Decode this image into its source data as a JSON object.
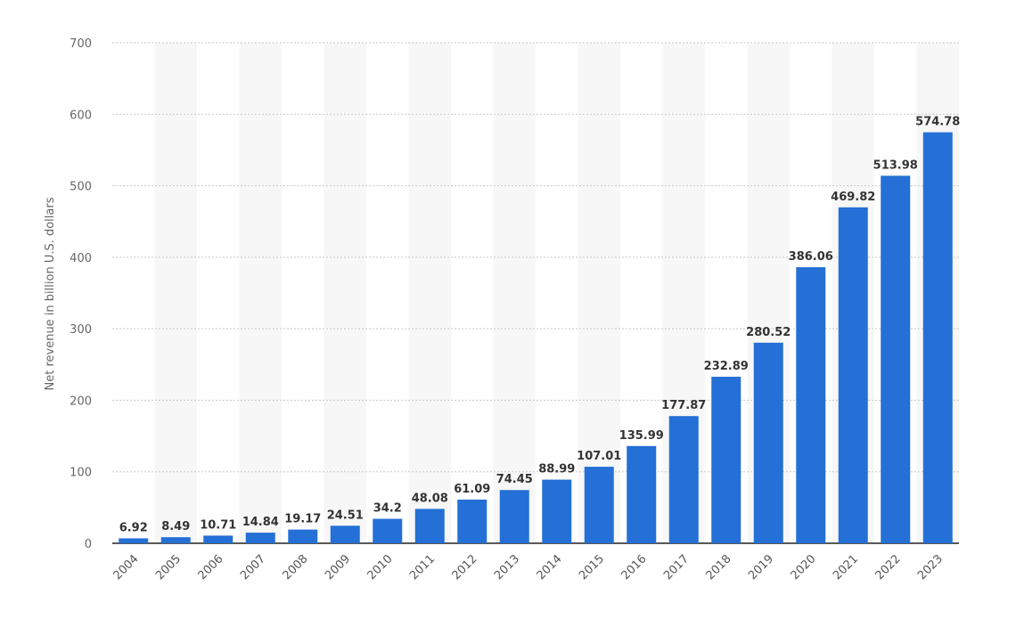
{
  "chart_data": {
    "type": "bar",
    "ylabel": "Net revenue in billion U.S. dollars",
    "xlabel": "",
    "ylim": [
      0,
      700
    ],
    "yticks": [
      0,
      100,
      200,
      300,
      400,
      500,
      600,
      700
    ],
    "grid": true,
    "bar_color": "#2470d6",
    "categories": [
      "2004",
      "2005",
      "2006",
      "2007",
      "2008",
      "2009",
      "2010",
      "2011",
      "2012",
      "2013",
      "2014",
      "2015",
      "2016",
      "2017",
      "2018",
      "2019",
      "2020",
      "2021",
      "2022",
      "2023"
    ],
    "values": [
      6.92,
      8.49,
      10.71,
      14.84,
      19.17,
      24.51,
      34.2,
      48.08,
      61.09,
      74.45,
      88.99,
      107.01,
      135.99,
      177.87,
      232.89,
      280.52,
      386.06,
      469.82,
      513.98,
      574.78
    ]
  }
}
